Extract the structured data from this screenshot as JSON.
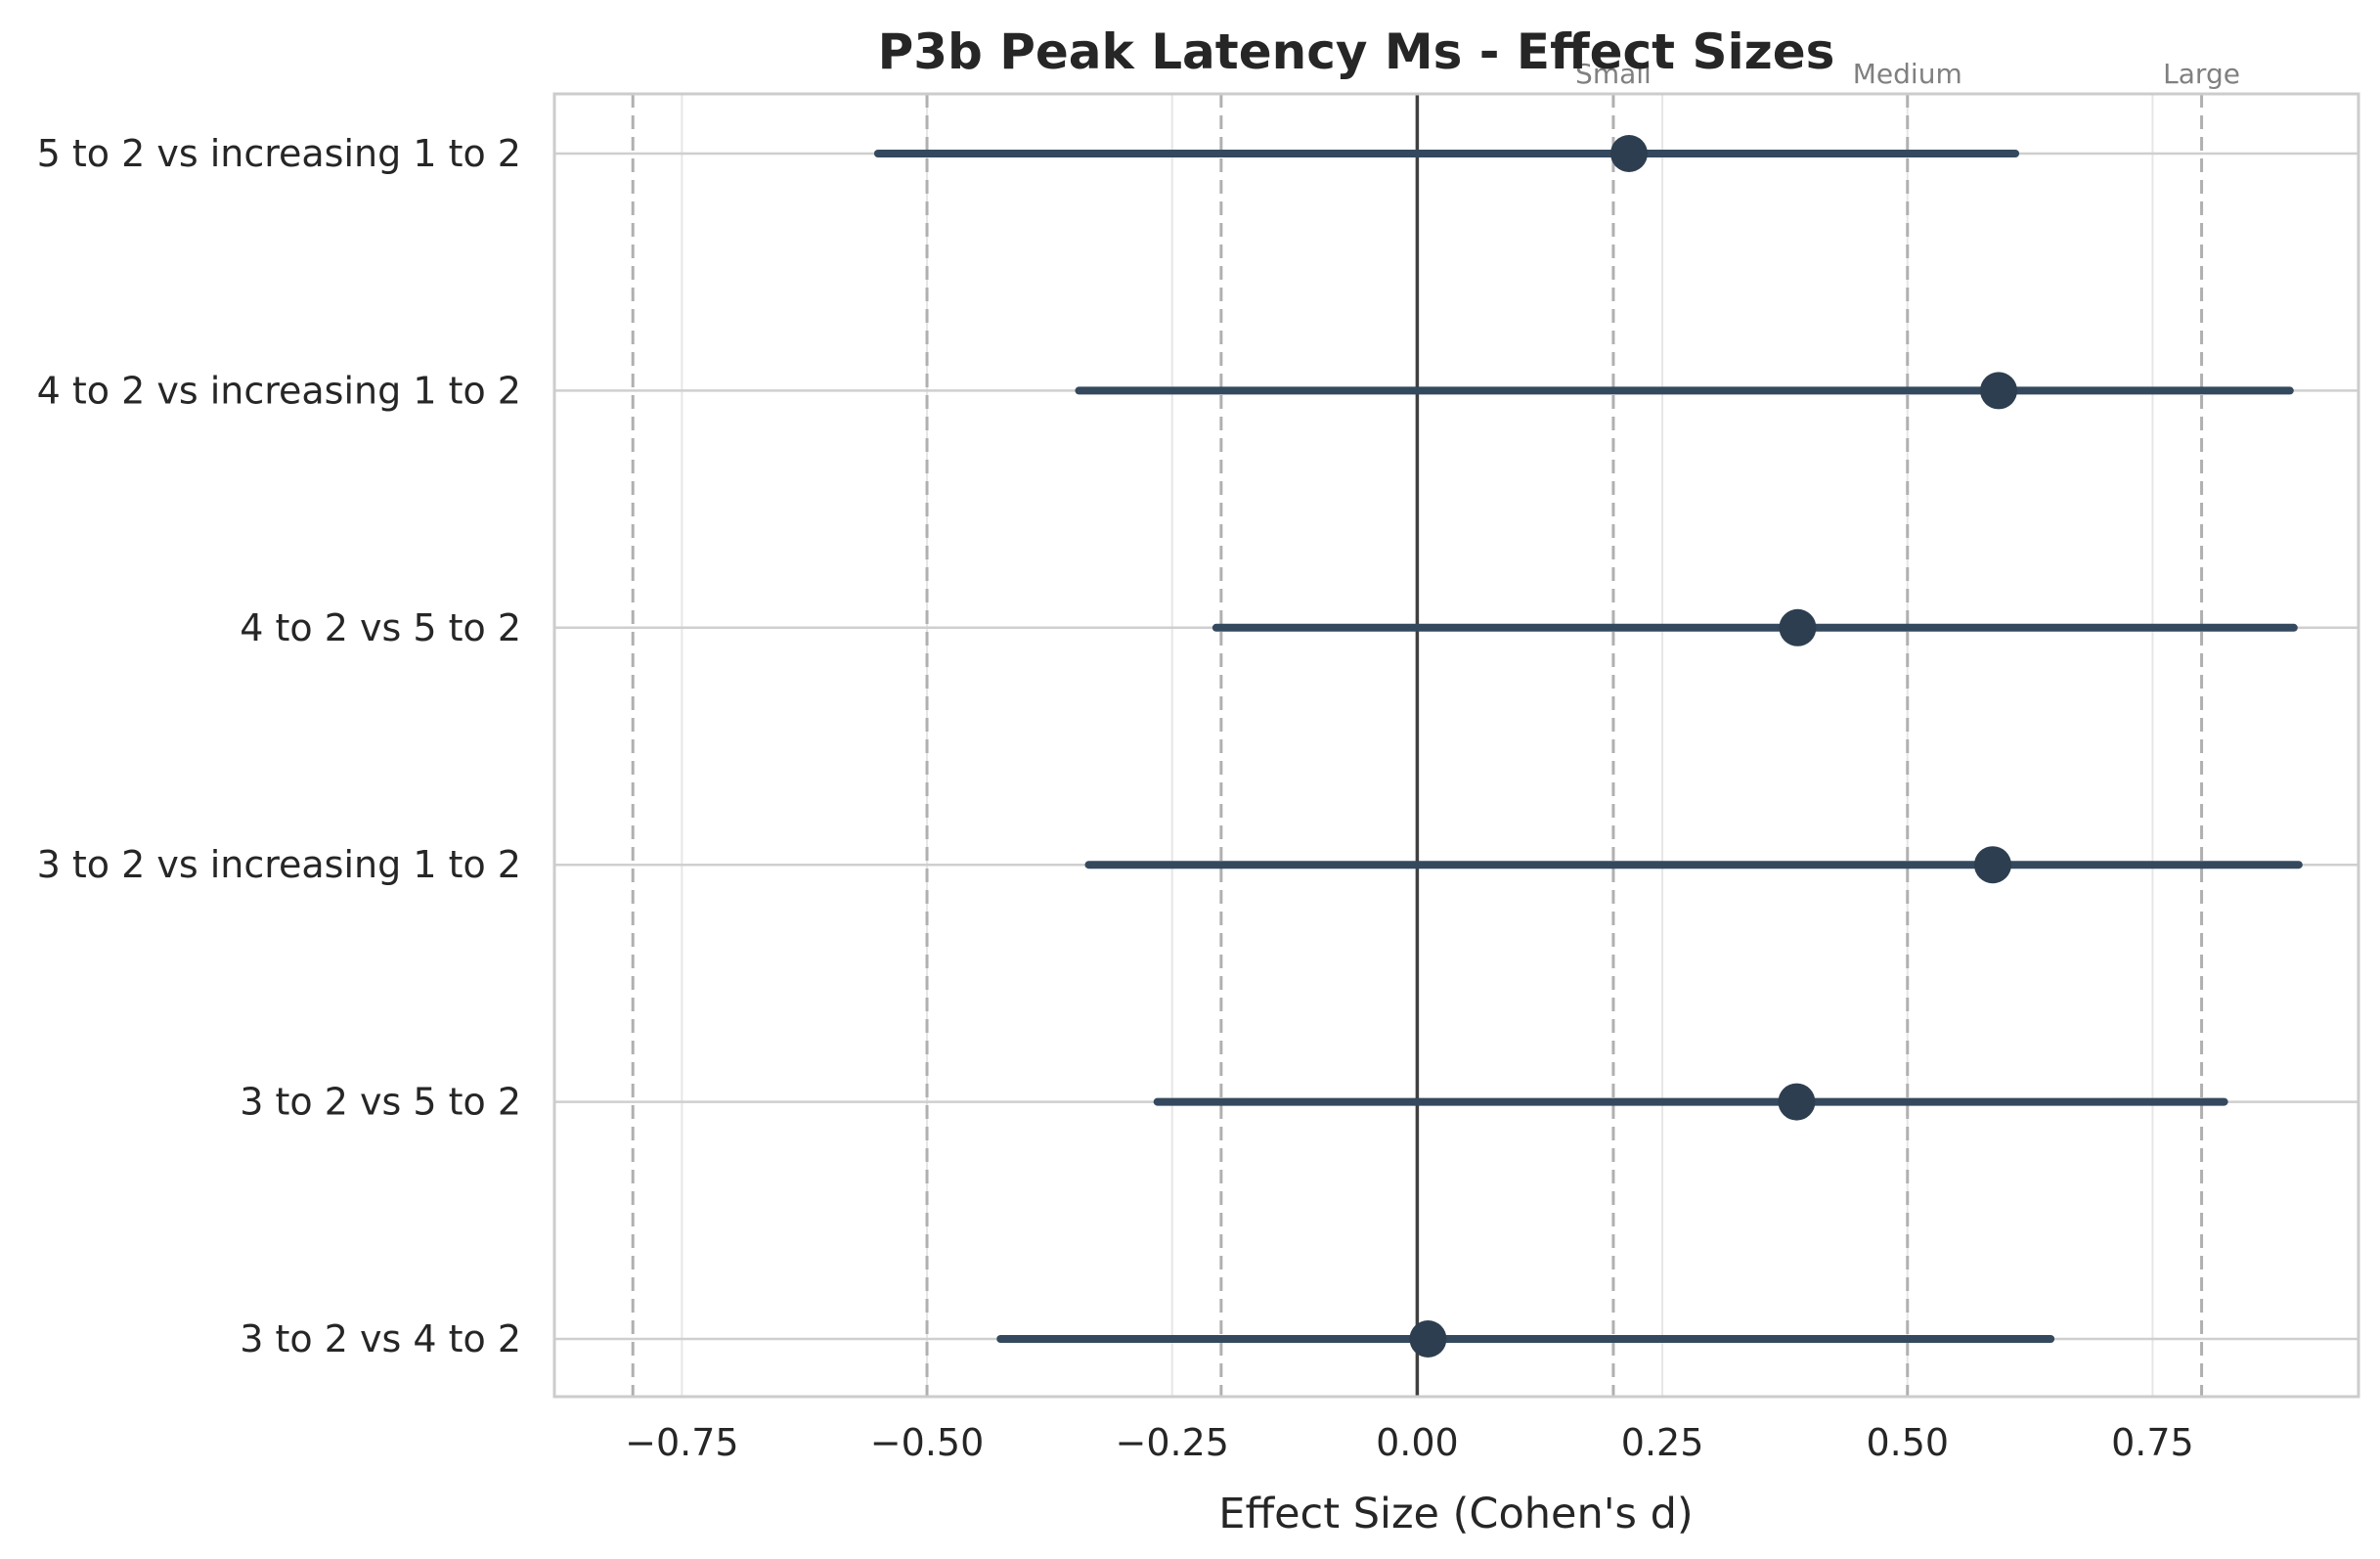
{
  "chart_data": {
    "type": "forest",
    "title": "P3b Peak Latency Ms - Effect Sizes",
    "xlabel": "Effect Size (Cohen's d)",
    "ylabel": "",
    "xlim": [
      -0.88,
      0.96
    ],
    "xticks": [
      -0.75,
      -0.5,
      -0.25,
      0.0,
      0.25,
      0.5,
      0.75
    ],
    "xtick_labels": [
      "−0.75",
      "−0.50",
      "−0.25",
      "0.00",
      "0.25",
      "0.50",
      "0.75"
    ],
    "grid": true,
    "zero_line": 0,
    "reference_lines": [
      {
        "value": -0.8,
        "label": ""
      },
      {
        "value": -0.5,
        "label": ""
      },
      {
        "value": -0.2,
        "label": ""
      },
      {
        "value": 0.2,
        "label": "Small"
      },
      {
        "value": 0.5,
        "label": "Medium"
      },
      {
        "value": 0.8,
        "label": "Large"
      }
    ],
    "categories": [
      "5 to 2 vs increasing 1 to 2",
      "4 to 2 vs increasing 1 to 2",
      "4 to 2 vs 5 to 2",
      "3 to 2 vs increasing 1 to 2",
      "3 to 2 vs 5 to 2",
      "3 to 2 vs 4 to 2"
    ],
    "estimates": [
      0.216,
      0.593,
      0.388,
      0.587,
      0.387,
      0.011
    ],
    "ci_lower": [
      -0.55,
      -0.345,
      -0.205,
      -0.335,
      -0.265,
      -0.425
    ],
    "ci_upper": [
      0.61,
      0.89,
      0.894,
      0.899,
      0.823,
      0.646
    ],
    "colors": {
      "point": "#2d3e50",
      "interval": "#34495e",
      "zero_line": "#404040",
      "reference": "#b0b0b0",
      "grid": "#e6e6e6",
      "axes_border": "#cccccc"
    }
  }
}
